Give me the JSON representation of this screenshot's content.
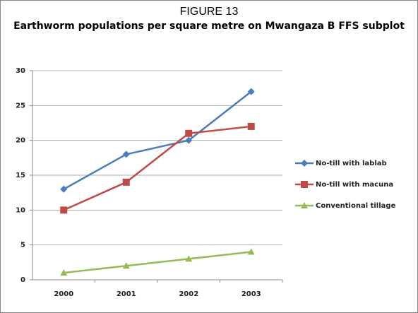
{
  "chart_data": {
    "type": "line",
    "title": "FIGURE 13",
    "subtitle": "Earthworm populations per square metre on Mwangaza B FFS subplot",
    "categories": [
      "2000",
      "2001",
      "2002",
      "2003"
    ],
    "series": [
      {
        "name": "No-till with lablab",
        "color": "#4a7ebb",
        "marker": "diamond",
        "values": [
          13,
          18,
          20,
          27
        ]
      },
      {
        "name": "No-till with macuna",
        "color": "#be4b48",
        "marker": "square",
        "values": [
          10,
          14,
          21,
          22
        ]
      },
      {
        "name": "Conventional tillage",
        "color": "#98b954",
        "marker": "triangle",
        "values": [
          1,
          2,
          3,
          4
        ]
      }
    ],
    "ylim": [
      0,
      30
    ],
    "yticks": [
      0,
      5,
      10,
      15,
      20,
      25,
      30
    ],
    "grid": true,
    "legend": "right"
  }
}
